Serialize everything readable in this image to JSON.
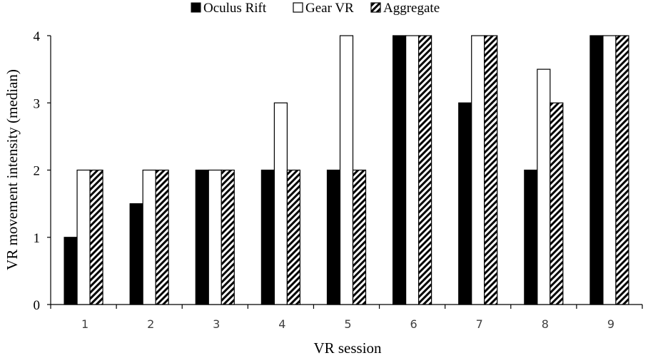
{
  "chart_data": {
    "type": "bar",
    "title": "",
    "xlabel": "VR session",
    "ylabel": "VR movement intensity (median)",
    "categories": [
      "1",
      "2",
      "3",
      "4",
      "5",
      "6",
      "7",
      "8",
      "9"
    ],
    "ylim": [
      0,
      4
    ],
    "yticks": [
      "0",
      "1",
      "2",
      "3",
      "4"
    ],
    "legend_position": "top",
    "grid": false,
    "series": [
      {
        "name": "Oculus Rift",
        "style": "solid-black",
        "values": [
          1,
          1.5,
          2,
          2,
          2,
          4,
          3,
          2,
          4
        ]
      },
      {
        "name": "Gear VR",
        "style": "white",
        "values": [
          2,
          2,
          2,
          3,
          4,
          4,
          4,
          3.5,
          4
        ]
      },
      {
        "name": "Aggregate",
        "style": "hatched",
        "values": [
          2,
          2,
          2,
          2,
          2,
          4,
          4,
          3,
          4
        ]
      }
    ]
  }
}
